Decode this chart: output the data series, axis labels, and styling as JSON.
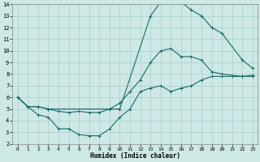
{
  "xlabel": "Humidex (Indice chaleur)",
  "xlim": [
    -0.5,
    23.5
  ],
  "ylim": [
    2,
    14
  ],
  "yticks": [
    2,
    3,
    4,
    5,
    6,
    7,
    8,
    9,
    10,
    11,
    12,
    13,
    14
  ],
  "xticks": [
    0,
    1,
    2,
    3,
    4,
    5,
    6,
    7,
    8,
    9,
    10,
    11,
    12,
    13,
    14,
    15,
    16,
    17,
    18,
    19,
    20,
    21,
    22,
    23
  ],
  "bg_color": "#cde8e5",
  "grid_color": "#aacfcc",
  "line_color": "#1a6b6b",
  "curves": [
    {
      "x": [
        0,
        1,
        2,
        3,
        10,
        13,
        14,
        15,
        16,
        17,
        18,
        19,
        20,
        22,
        23
      ],
      "y": [
        6.0,
        5.2,
        5.2,
        5.0,
        5.0,
        13.0,
        14.2,
        14.3,
        14.2,
        13.5,
        13.0,
        12.0,
        11.5,
        9.2,
        8.5
      ]
    },
    {
      "x": [
        0,
        1,
        2,
        3,
        4,
        5,
        6,
        7,
        8,
        9,
        10,
        11,
        12,
        13,
        14,
        15,
        16,
        17,
        18,
        19,
        20,
        22,
        23
      ],
      "y": [
        6.0,
        5.2,
        5.2,
        5.0,
        4.8,
        4.7,
        4.8,
        4.7,
        4.7,
        5.0,
        5.5,
        6.5,
        7.5,
        9.0,
        10.0,
        10.2,
        9.5,
        9.5,
        9.2,
        8.2,
        8.0,
        7.8,
        7.8
      ]
    },
    {
      "x": [
        0,
        1,
        2,
        3,
        4,
        5,
        6,
        7,
        8,
        9,
        10,
        11,
        12,
        13,
        14,
        15,
        16,
        17,
        18,
        19,
        20,
        21,
        22,
        23
      ],
      "y": [
        6.0,
        5.2,
        4.5,
        4.3,
        3.3,
        3.3,
        2.8,
        2.7,
        2.7,
        3.3,
        4.3,
        5.0,
        6.5,
        6.8,
        7.0,
        6.5,
        6.8,
        7.0,
        7.5,
        7.8,
        7.8,
        7.8,
        7.8,
        7.9
      ]
    }
  ]
}
